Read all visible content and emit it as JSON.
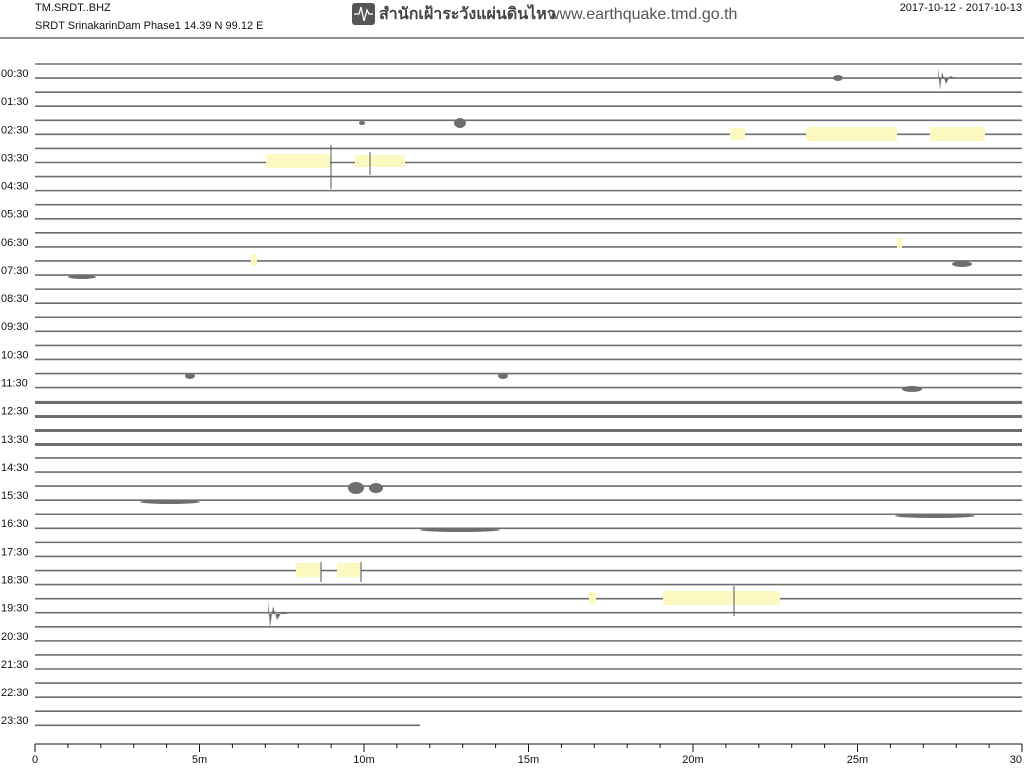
{
  "header": {
    "station": "TM.SRDT..BHZ",
    "site": "SRDT SrinakarinDam Phase1  14.39 N 99.12 E",
    "agency": "สำนักเฝ้าระวังแผ่นดินไหว",
    "website": "www.earthquake.tmd.go.th",
    "date_range": "2017-10-12 - 2017-10-13"
  },
  "chart_data": {
    "type": "helicorder",
    "row_labels": [
      "00:30",
      "01:30",
      "02:30",
      "03:30",
      "04:30",
      "05:30",
      "06:30",
      "07:30",
      "08:30",
      "09:30",
      "10:30",
      "11:30",
      "12:30",
      "13:30",
      "14:30",
      "15:30",
      "16:30",
      "17:30",
      "18:30",
      "19:30",
      "20:30",
      "21:30",
      "22:30",
      "23:30"
    ],
    "xlim": [
      0,
      30
    ],
    "xticks": [
      {
        "value": 0,
        "label": "0"
      },
      {
        "value": 5,
        "label": "5m"
      },
      {
        "value": 10,
        "label": "10m"
      },
      {
        "value": 15,
        "label": "15m"
      },
      {
        "value": 20,
        "label": "20m"
      },
      {
        "value": 25,
        "label": "25m"
      },
      {
        "value": 30,
        "label": "30"
      }
    ],
    "minor_xticks": [
      1,
      2,
      3,
      4,
      6,
      7,
      8,
      9,
      11,
      12,
      13,
      14,
      16,
      17,
      18,
      19,
      21,
      22,
      23,
      24,
      26,
      27,
      28,
      29
    ],
    "trace_end": 11.7,
    "color": "#6e6e6e"
  }
}
